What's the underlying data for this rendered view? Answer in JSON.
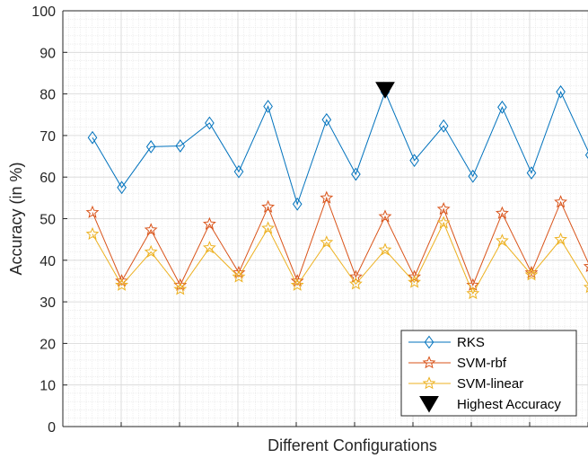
{
  "chart_data": {
    "type": "line",
    "xlabel": "Different Configurations",
    "ylabel": "Accuracy (in %)",
    "ylim": [
      0,
      100
    ],
    "xlim": [
      0,
      18
    ],
    "yticks": [
      0,
      10,
      20,
      30,
      40,
      50,
      60,
      70,
      80,
      90,
      100
    ],
    "x": [
      1,
      2,
      3,
      4,
      5,
      6,
      7,
      8,
      9,
      10,
      11,
      12,
      13,
      14,
      15,
      16,
      17,
      18
    ],
    "grid": "on (major and minor)",
    "legend_position": "bottom-right",
    "series": [
      {
        "name": "RKS",
        "color": "#0072BD",
        "marker": "diamond",
        "values": [
          69.5,
          57.5,
          67.3,
          67.5,
          73.0,
          61.3,
          77.0,
          53.5,
          73.8,
          60.7,
          80.5,
          64.0,
          72.3,
          60.2,
          76.8,
          61.0,
          80.5,
          65.3
        ]
      },
      {
        "name": "SVM-rbf",
        "color": "#D95319",
        "marker": "star",
        "values": [
          51.5,
          35.0,
          47.3,
          34.0,
          48.7,
          37.0,
          52.8,
          35.0,
          55.0,
          36.0,
          50.5,
          36.0,
          52.3,
          34.0,
          51.3,
          37.0,
          54.0,
          38.5
        ]
      },
      {
        "name": "SVM-linear",
        "color": "#EDB120",
        "marker": "star",
        "values": [
          46.3,
          34.0,
          42.0,
          33.0,
          43.0,
          36.0,
          47.7,
          34.0,
          44.3,
          34.3,
          42.5,
          34.7,
          49.0,
          32.0,
          44.7,
          36.5,
          45.0,
          33.5
        ]
      },
      {
        "name": "Highest Accuracy",
        "color": "#000000",
        "marker": "triangle-down",
        "x": [
          11
        ],
        "values": [
          80.5
        ]
      }
    ]
  }
}
